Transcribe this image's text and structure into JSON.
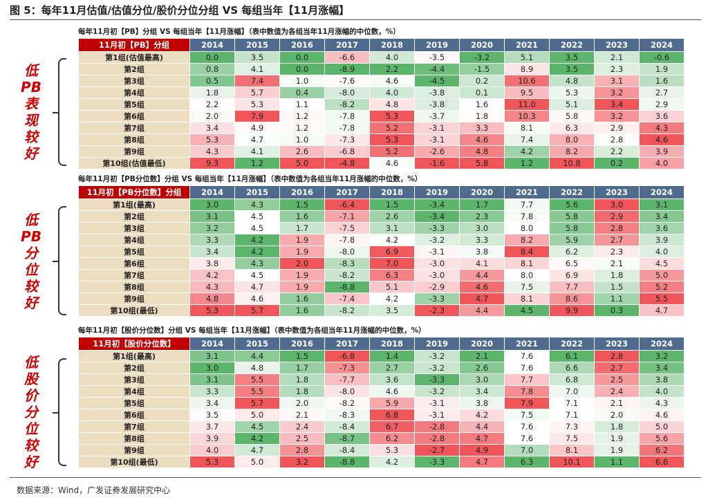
{
  "figure_title": "图 5：每年11月估值/估值分位/股价分位分组  VS  每组当年【11月涨幅】",
  "source": "数据来源：Wind，广发证券发展研究中心",
  "colors": {
    "low": "#5bb56a",
    "mid": "#ffffff",
    "high": "#f0555a",
    "header": "#4e6a8d",
    "corner": "#c00000",
    "label_bg": "#ecdcc0"
  },
  "years": [
    "2014",
    "2015",
    "2016",
    "2017",
    "2018",
    "2019",
    "2020",
    "2021",
    "2022",
    "2023",
    "2024"
  ],
  "tables": [
    {
      "subtitle": "每年11月初【PB】分组 VS 每组当年【11月涨幅】（表中数值为各组当年11月涨幅的中位数，%）",
      "corner": "11月初【PB】分组",
      "side_label": [
        "低",
        "PB",
        "表",
        "现",
        "较",
        "好"
      ],
      "rows": [
        {
          "label": "第1组(估值最高)",
          "values": [
            0.0,
            3.5,
            0.0,
            -6.6,
            4.0,
            -3.5,
            -3.2,
            5.1,
            3.5,
            2.1,
            -0.6
          ]
        },
        {
          "label": "第2组",
          "values": [
            0.8,
            4.1,
            0.0,
            -8.9,
            2.2,
            -4.4,
            -1.5,
            8.9,
            3.5,
            2.3,
            1.9
          ]
        },
        {
          "label": "第3组",
          "values": [
            0.5,
            7.4,
            1.0,
            -7.6,
            4.6,
            -4.5,
            0.2,
            10.6,
            4.8,
            3.1,
            1.6
          ]
        },
        {
          "label": "第4组",
          "values": [
            1.8,
            5.7,
            0.4,
            -8.0,
            4.0,
            -3.8,
            0.1,
            9.5,
            5.3,
            3.2,
            2.7
          ]
        },
        {
          "label": "第5组",
          "values": [
            2.2,
            5.3,
            1.1,
            -8.2,
            4.8,
            -3.8,
            1.6,
            11.0,
            5.1,
            3.4,
            2.9
          ]
        },
        {
          "label": "第6组",
          "values": [
            2.0,
            7.9,
            1.2,
            -7.8,
            5.3,
            -3.7,
            1.8,
            10.3,
            5.8,
            3.2,
            3.6
          ]
        },
        {
          "label": "第7组",
          "values": [
            3.4,
            4.9,
            1.2,
            -7.8,
            5.2,
            -3.1,
            3.3,
            8.1,
            6.3,
            2.9,
            4.3
          ]
        },
        {
          "label": "第8组",
          "values": [
            5.3,
            4.7,
            1.0,
            -7.3,
            5.3,
            -3.1,
            4.6,
            7.4,
            8.0,
            2.8,
            4.6
          ]
        },
        {
          "label": "第9组",
          "values": [
            4.3,
            4.1,
            2.6,
            -6.8,
            5.2,
            -2.6,
            4.8,
            4.2,
            8.2,
            2.2,
            3.9
          ]
        },
        {
          "label": "第10组(估值最低)",
          "values": [
            9.3,
            1.2,
            5.0,
            -4.8,
            4.6,
            -1.6,
            5.8,
            1.2,
            10.8,
            0.2,
            4.0
          ]
        }
      ]
    },
    {
      "subtitle": "每年11月初【PB分位数】分组 VS 每组当年【11月涨幅】（表中数值为各组当年11月涨幅的中位数，%）",
      "corner": "11月初【PB分位数】分组",
      "side_label": [
        "低",
        "PB",
        "分",
        "位",
        "较",
        "好"
      ],
      "rows": [
        {
          "label": "第1组(最高)",
          "values": [
            3.0,
            4.3,
            1.5,
            -6.4,
            1.5,
            -3.4,
            1.7,
            7.7,
            5.6,
            3.0,
            3.1
          ]
        },
        {
          "label": "第2组",
          "values": [
            3.1,
            4.5,
            1.6,
            -7.1,
            2.6,
            -3.4,
            2.3,
            7.8,
            5.8,
            2.9,
            3.4
          ]
        },
        {
          "label": "第3组",
          "values": [
            3.2,
            4.5,
            1.7,
            -7.5,
            3.1,
            -3.3,
            3.0,
            8.0,
            5.8,
            2.8,
            3.6
          ]
        },
        {
          "label": "第4组",
          "values": [
            3.3,
            4.2,
            1.9,
            -7.8,
            4.2,
            -3.2,
            3.3,
            8.2,
            5.9,
            2.7,
            3.9
          ]
        },
        {
          "label": "第5组",
          "values": [
            3.4,
            4.2,
            1.9,
            -8.0,
            6.9,
            -3.1,
            3.8,
            8.4,
            6.2,
            2.3,
            4.0
          ]
        },
        {
          "label": "第6组",
          "values": [
            3.8,
            4.3,
            2.0,
            -8.3,
            7.0,
            -3.0,
            4.1,
            8.1,
            6.5,
            2.1,
            4.5
          ]
        },
        {
          "label": "第7组",
          "values": [
            4.2,
            4.5,
            1.9,
            -8.2,
            6.3,
            -3.0,
            4.4,
            8.0,
            6.9,
            1.8,
            5.0
          ]
        },
        {
          "label": "第8组",
          "values": [
            4.3,
            4.7,
            1.9,
            -8.8,
            5.1,
            -2.9,
            4.6,
            7.5,
            7.7,
            1.5,
            5.2
          ]
        },
        {
          "label": "第9组",
          "values": [
            4.8,
            4.6,
            1.6,
            -7.4,
            4.2,
            -3.3,
            4.7,
            8.1,
            8.6,
            1.1,
            5.5
          ]
        },
        {
          "label": "第10组(最低)",
          "values": [
            5.3,
            5.7,
            1.6,
            -8.2,
            3.5,
            -2.3,
            4.4,
            4.5,
            9.9,
            0.3,
            4.7
          ]
        }
      ]
    },
    {
      "subtitle": "每年11月初【股价分位数】分组 VS 每组当年【11月涨幅】（表中数值为各组当年11月涨幅的中位数，%）",
      "corner": "11月初【股价分位数】",
      "side_label": [
        "低",
        "股",
        "价",
        "分",
        "位",
        "较",
        "好"
      ],
      "rows": [
        {
          "label": "第1组(最高)",
          "values": [
            3.1,
            4.4,
            1.5,
            -6.8,
            1.4,
            -3.2,
            2.1,
            7.6,
            6.1,
            2.8,
            3.2
          ]
        },
        {
          "label": "第2组",
          "values": [
            3.0,
            4.8,
            1.7,
            -7.3,
            2.7,
            -3.2,
            2.6,
            7.6,
            6.6,
            2.7,
            3.4
          ]
        },
        {
          "label": "第3组",
          "values": [
            3.1,
            5.5,
            1.8,
            -7.7,
            3.6,
            -3.3,
            3.0,
            7.7,
            6.8,
            2.5,
            3.8
          ]
        },
        {
          "label": "第4组",
          "values": [
            3.3,
            5.5,
            1.8,
            -8.0,
            4.6,
            -3.2,
            3.4,
            7.8,
            7.0,
            2.4,
            4.0
          ]
        },
        {
          "label": "第5组",
          "values": [
            3.4,
            5.7,
            2.0,
            -8.2,
            5.9,
            -3.1,
            3.8,
            7.9,
            7.1,
            2.1,
            4.3
          ]
        },
        {
          "label": "第6组",
          "values": [
            3.5,
            5.0,
            2.1,
            -8.3,
            6.8,
            -3.1,
            4.2,
            7.5,
            7.1,
            2.0,
            4.6
          ]
        },
        {
          "label": "第7组",
          "values": [
            3.7,
            4.5,
            2.4,
            -8.4,
            6.7,
            -2.8,
            4.4,
            7.6,
            7.3,
            1.8,
            5.0
          ]
        },
        {
          "label": "第8组",
          "values": [
            3.9,
            4.2,
            2.5,
            -8.7,
            6.2,
            -2.8,
            4.7,
            7.6,
            7.5,
            1.9,
            5.6
          ]
        },
        {
          "label": "第9组",
          "values": [
            4.0,
            4.7,
            2.8,
            -8.4,
            5.3,
            -2.7,
            4.9,
            7.0,
            8.1,
            1.9,
            6.2
          ]
        },
        {
          "label": "第10组(最低)",
          "values": [
            5.3,
            5.0,
            3.2,
            -8.8,
            4.2,
            -3.3,
            4.7,
            6.3,
            10.1,
            1.1,
            6.6
          ]
        }
      ]
    }
  ]
}
